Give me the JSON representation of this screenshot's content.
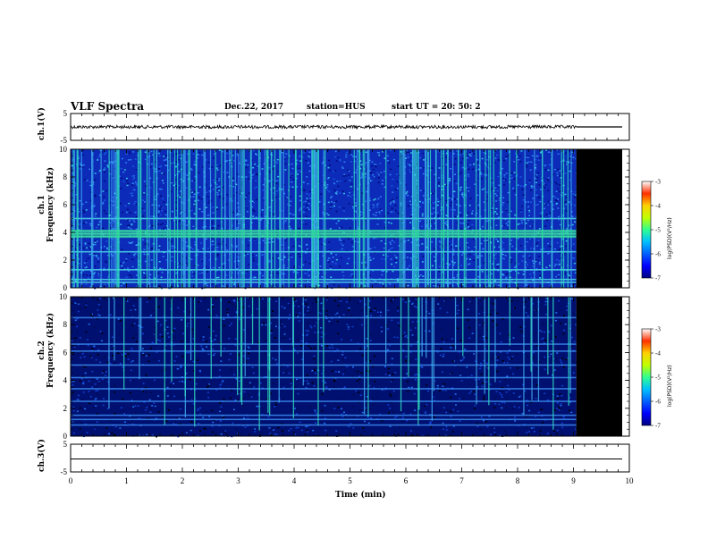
{
  "header": {
    "title": "VLF Spectra",
    "date": "Dec.22, 2017",
    "station": "station=HUS",
    "start": "start  UT =   20: 50: 2"
  },
  "colors": {
    "background_noise": "#0a2ab0",
    "black_region": "#000000",
    "emission": "#30e0a0"
  },
  "chart_data": [
    {
      "type": "line",
      "panel": "ch1-waveform",
      "ylabel": "ch.1(V)",
      "ylim": [
        -5,
        5
      ],
      "yticks": [
        "5",
        "-5"
      ],
      "xlim": [
        0,
        10
      ],
      "signal_end_min": 9.05,
      "description_values": {
        "baseline_V": 0,
        "noise_amplitude_V": 0.6
      }
    },
    {
      "type": "heatmap",
      "panel": "ch1-spectrogram",
      "ylabel": "ch.1\nFrequency (kHz)",
      "ylim": [
        0,
        10
      ],
      "yticks": [
        "0",
        "2",
        "4",
        "6",
        "8",
        "10"
      ],
      "xlim": [
        0,
        10
      ],
      "data_end_min": 9.05,
      "bands_khz": [
        0.4,
        0.6,
        1.3,
        2.6,
        3.7,
        3.9,
        4.1,
        5.0
      ],
      "colorbar": {
        "label": "log(PSD)(V²/Hz)",
        "range": [
          -7,
          -3
        ],
        "ticks": [
          "-3",
          "-4",
          "-5",
          "-6",
          "-7"
        ]
      }
    },
    {
      "type": "heatmap",
      "panel": "ch2-spectrogram",
      "ylabel": "ch.2\nFrequency (kHz)",
      "ylim": [
        0,
        10
      ],
      "yticks": [
        "0",
        "2",
        "4",
        "6",
        "8",
        "10"
      ],
      "xlim": [
        0,
        10
      ],
      "data_end_min": 9.05,
      "bands_khz": [
        0.8,
        1.2,
        1.5,
        2.5,
        3.4,
        4.2,
        5.1,
        6.1,
        6.6,
        8.5
      ],
      "colorbar": {
        "label": "log(PSD)(V²/Hz)",
        "range": [
          -7,
          -3
        ],
        "ticks": [
          "-3",
          "-4",
          "-5",
          "-6",
          "-7"
        ]
      }
    },
    {
      "type": "line",
      "panel": "ch3-waveform",
      "ylabel": "ch.3(V)",
      "ylim": [
        -5,
        5
      ],
      "yticks": [
        "5",
        "-5"
      ],
      "xlim": [
        0,
        10
      ],
      "values_V": [
        0,
        0
      ]
    }
  ],
  "xaxis": {
    "label": "Time  (min)",
    "ticks": [
      "0",
      "1",
      "2",
      "3",
      "4",
      "5",
      "6",
      "7",
      "8",
      "9",
      "10"
    ]
  }
}
